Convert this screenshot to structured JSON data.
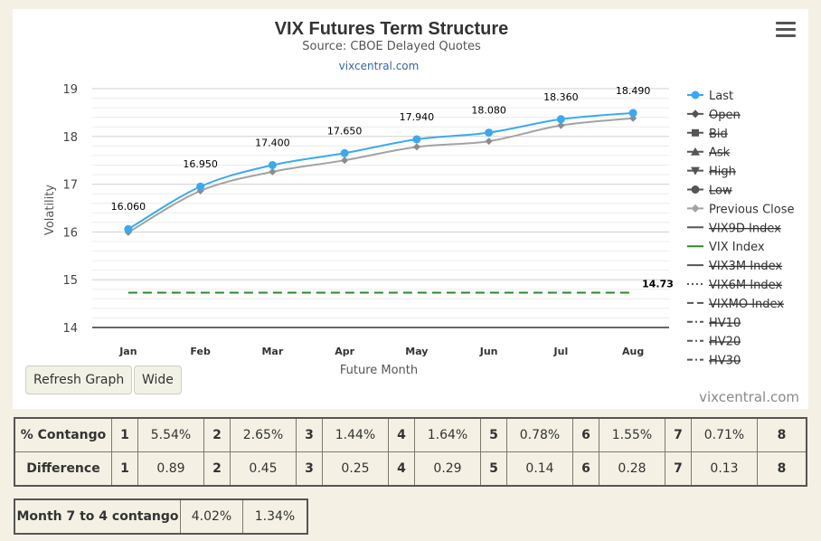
{
  "header": {
    "title": "VIX Futures Term Structure",
    "subtitle": "Source: CBOE Delayed Quotes",
    "link": "vixcentral.com"
  },
  "buttons": {
    "refresh": "Refresh Graph",
    "wide": "Wide"
  },
  "brand": "vixcentral.com",
  "chart_data": {
    "type": "line",
    "categories": [
      "Jan",
      "Feb",
      "Mar",
      "Apr",
      "May",
      "Jun",
      "Jul",
      "Aug"
    ],
    "series": [
      {
        "name": "Last",
        "values": [
          16.06,
          16.95,
          17.4,
          17.65,
          17.94,
          18.08,
          18.36,
          18.49
        ],
        "labels": [
          "16.060",
          "16.950",
          "17.400",
          "17.650",
          "17.940",
          "18.080",
          "18.360",
          "18.490"
        ],
        "color": "#3ba9f0"
      },
      {
        "name": "Previous Close",
        "values": [
          15.99,
          16.86,
          17.26,
          17.5,
          17.78,
          17.9,
          18.23,
          18.38
        ],
        "color": "#a3a3a3"
      },
      {
        "name": "VIX Index",
        "values": [
          14.73,
          14.73,
          14.73,
          14.73,
          14.73,
          14.73,
          14.73,
          14.73
        ],
        "end_label": "14.73",
        "color": "#2a8a2a",
        "dash": "dashed"
      }
    ],
    "xlabel": "Future Month",
    "ylabel": "Volatility",
    "ylim": [
      14,
      19
    ],
    "yticks": [
      "14",
      "15",
      "16",
      "17",
      "18",
      "19"
    ],
    "grid": true,
    "legend_position": "right",
    "legend": [
      {
        "name": "Last",
        "marker": "circle",
        "line": "solid",
        "color": "#3ba9f0",
        "hidden": false
      },
      {
        "name": "Open",
        "marker": "diamond",
        "line": "solid",
        "color": "#555555",
        "hidden": true
      },
      {
        "name": "Bid",
        "marker": "square",
        "line": "solid",
        "color": "#555555",
        "hidden": true
      },
      {
        "name": "Ask",
        "marker": "triangle",
        "line": "solid",
        "color": "#555555",
        "hidden": true
      },
      {
        "name": "High",
        "marker": "triangle-down",
        "line": "solid",
        "color": "#555555",
        "hidden": true
      },
      {
        "name": "Low",
        "marker": "circle",
        "line": "solid",
        "color": "#555555",
        "hidden": true
      },
      {
        "name": "Previous Close",
        "marker": "diamond",
        "line": "solid",
        "color": "#a3a3a3",
        "hidden": false
      },
      {
        "name": "VIX9D Index",
        "marker": "none",
        "line": "solid",
        "color": "#555555",
        "hidden": true
      },
      {
        "name": "VIX Index",
        "marker": "none",
        "line": "solid",
        "color": "#2a8a2a",
        "hidden": false
      },
      {
        "name": "VIX3M Index",
        "marker": "none",
        "line": "solid",
        "color": "#555555",
        "hidden": true
      },
      {
        "name": "VIX6M Index",
        "marker": "none",
        "line": "dotted",
        "color": "#555555",
        "hidden": true
      },
      {
        "name": "VIXMO Index",
        "marker": "none",
        "line": "dashed",
        "color": "#555555",
        "hidden": true
      },
      {
        "name": "HV10",
        "marker": "none",
        "line": "dashdot",
        "color": "#555555",
        "hidden": true
      },
      {
        "name": "HV20",
        "marker": "none",
        "line": "dashdot",
        "color": "#555555",
        "hidden": true
      },
      {
        "name": "HV30",
        "marker": "none",
        "line": "dashdot",
        "color": "#555555",
        "hidden": true
      }
    ]
  },
  "contango_table": {
    "rows": [
      {
        "label": "% Contango",
        "cells": [
          "1",
          "5.54%",
          "2",
          "2.65%",
          "3",
          "1.44%",
          "4",
          "1.64%",
          "5",
          "0.78%",
          "6",
          "1.55%",
          "7",
          "0.71%",
          "8"
        ]
      },
      {
        "label": "Difference",
        "cells": [
          "1",
          "0.89",
          "2",
          "0.45",
          "3",
          "0.25",
          "4",
          "0.29",
          "5",
          "0.14",
          "6",
          "0.28",
          "7",
          "0.13",
          "8"
        ]
      }
    ]
  },
  "month_table": {
    "label": "Month 7 to 4 contango",
    "values": [
      "4.02%",
      "1.34%"
    ]
  }
}
